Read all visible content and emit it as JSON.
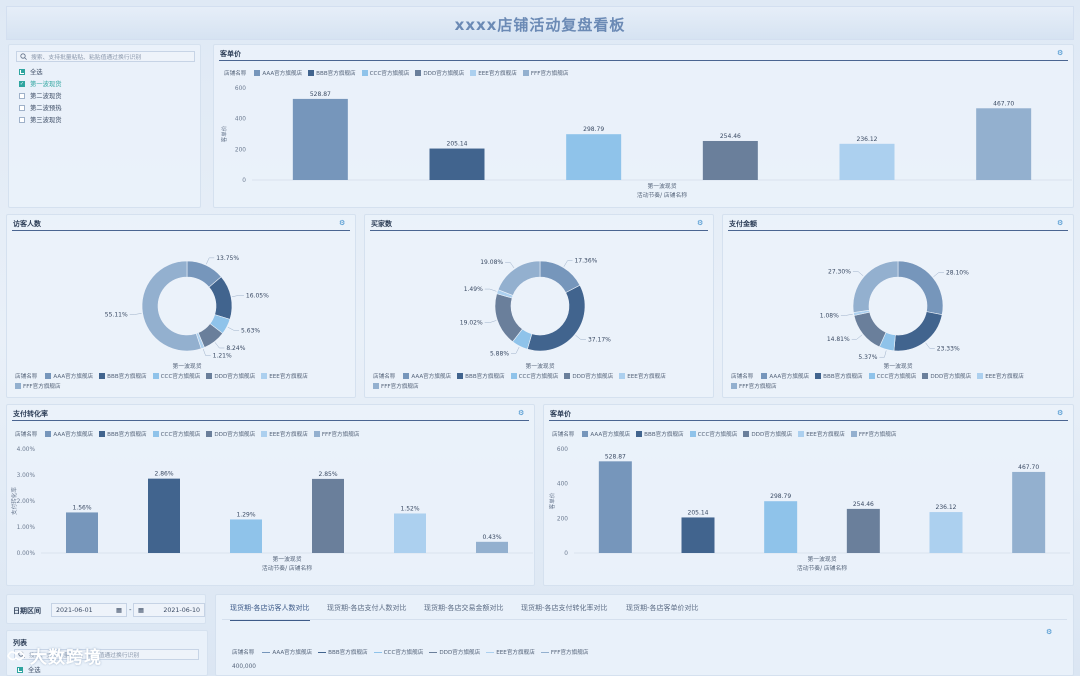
{
  "page_title": "xxxx店铺活动复盘看板",
  "colors": {
    "s0": "#7696bb",
    "s1": "#41648e",
    "s2": "#8fc3ea",
    "s3": "#6a7f9b",
    "s4": "#acd0ef",
    "s5": "#93b0cf"
  },
  "legend": {
    "title": "店铺名称",
    "items": [
      "AAA官方旗舰店",
      "BBB官方旗舰店",
      "CCC官方旗舰店",
      "DDD官方旗舰店",
      "EEE官方旗舰店",
      "FFF官方旗舰店"
    ]
  },
  "filter": {
    "search_placeholder": "搜索、支持批量粘贴、粘贴值通过换行识别",
    "options": [
      {
        "label": "全选",
        "state": "partial"
      },
      {
        "label": "第一波现货",
        "state": "checked"
      },
      {
        "label": "第二波现货",
        "state": "unchecked"
      },
      {
        "label": "第二波预热",
        "state": "unchecked"
      },
      {
        "label": "第三波现货",
        "state": "unchecked"
      }
    ]
  },
  "top_chart": {
    "title": "客单价",
    "ylabel": "客单价",
    "xcat": "第一波现货",
    "xaxis": "活动节奏/ 店铺名称"
  },
  "donut1": {
    "title": "访客人数",
    "center_label": "第一波现货"
  },
  "donut2": {
    "title": "买家数",
    "center_label": "第一波现货"
  },
  "donut3": {
    "title": "支付金额",
    "center_label": "第一波现货"
  },
  "conv_chart": {
    "title": "支付转化率",
    "ylabel": "支付转化率",
    "xcat": "第一波现货",
    "xaxis": "活动节奏/ 店铺名称"
  },
  "price_chart": {
    "title": "客单价",
    "ylabel": "客单价",
    "xcat": "第一波现货",
    "xaxis": "活动节奏/ 店铺名称"
  },
  "date_filter": {
    "label": "日期区间",
    "start": "2021-06-01",
    "sep": "-",
    "end": "2021-06-10"
  },
  "list_panel": {
    "title": "列表",
    "search_placeholder": "搜索、支持批量粘贴、粘贴值通过换行识别",
    "first_option": "全选"
  },
  "tabs": [
    "现货期-各店访客人数对比",
    "现货期-各店支付人数对比",
    "现货期-各店交易金额对比",
    "现货期-各店支付转化率对比",
    "现货期-各店客单价对比"
  ],
  "line_legend": {
    "title": "店铺名称"
  },
  "line_chart_ytick": "400,000",
  "watermark": "大数跨境",
  "chart_data": [
    {
      "type": "bar",
      "title": "客单价",
      "categories": [
        "AAA官方旗舰店",
        "BBB官方旗舰店",
        "CCC官方旗舰店",
        "DDD官方旗舰店",
        "EEE官方旗舰店",
        "FFF官方旗舰店"
      ],
      "values": [
        528.87,
        205.14,
        298.79,
        254.46,
        236.12,
        467.7
      ],
      "labels": [
        "528.87",
        "205.14",
        "298.79",
        "254.46",
        "236.12",
        "467.70"
      ],
      "yticks": [
        "600",
        "400",
        "200",
        "0"
      ],
      "ylim": [
        0,
        600
      ]
    },
    {
      "type": "pie",
      "title": "访客人数",
      "categories": [
        "AAA官方旗舰店",
        "BBB官方旗舰店",
        "CCC官方旗舰店",
        "DDD官方旗舰店",
        "EEE官方旗舰店",
        "FFF官方旗舰店"
      ],
      "values": [
        13.75,
        16.05,
        5.63,
        8.24,
        1.21,
        55.11
      ],
      "labels": [
        "13.75%",
        "16.05%",
        "5.63%",
        "8.24%",
        "1.21%",
        "55.11%"
      ]
    },
    {
      "type": "pie",
      "title": "买家数",
      "categories": [
        "AAA官方旗舰店",
        "BBB官方旗舰店",
        "CCC官方旗舰店",
        "DDD官方旗舰店",
        "EEE官方旗舰店",
        "FFF官方旗舰店"
      ],
      "values": [
        17.36,
        37.17,
        5.88,
        19.02,
        1.49,
        19.08
      ],
      "labels": [
        "17.36%",
        "37.17%",
        "5.88%",
        "19.02%",
        "1.49%",
        "19.08%"
      ]
    },
    {
      "type": "pie",
      "title": "支付金额",
      "categories": [
        "AAA官方旗舰店",
        "BBB官方旗舰店",
        "CCC官方旗舰店",
        "DDD官方旗舰店",
        "EEE官方旗舰店",
        "FFF官方旗舰店"
      ],
      "values": [
        28.1,
        23.33,
        5.37,
        14.81,
        1.08,
        27.3
      ],
      "labels": [
        "28.10%",
        "23.33%",
        "5.37%",
        "14.81%",
        "1.08%",
        "27.30%"
      ]
    },
    {
      "type": "bar",
      "title": "支付转化率",
      "categories": [
        "AAA官方旗舰店",
        "BBB官方旗舰店",
        "CCC官方旗舰店",
        "DDD官方旗舰店",
        "EEE官方旗舰店",
        "FFF官方旗舰店"
      ],
      "values": [
        1.56,
        2.86,
        1.29,
        2.85,
        1.52,
        0.43
      ],
      "labels": [
        "1.56%",
        "2.86%",
        "1.29%",
        "2.85%",
        "1.52%",
        "0.43%"
      ],
      "yticks": [
        "4.00%",
        "3.00%",
        "2.00%",
        "1.00%",
        "0.00%"
      ],
      "ylim": [
        0,
        4
      ]
    },
    {
      "type": "bar",
      "title": "客单价",
      "categories": [
        "AAA官方旗舰店",
        "BBB官方旗舰店",
        "CCC官方旗舰店",
        "DDD官方旗舰店",
        "EEE官方旗舰店",
        "FFF官方旗舰店"
      ],
      "values": [
        528.87,
        205.14,
        298.79,
        254.46,
        236.12,
        467.7
      ],
      "labels": [
        "528.87",
        "205.14",
        "298.79",
        "254.46",
        "236.12",
        "467.70"
      ],
      "yticks": [
        "600",
        "400",
        "200",
        "0"
      ],
      "ylim": [
        0,
        600
      ]
    }
  ]
}
